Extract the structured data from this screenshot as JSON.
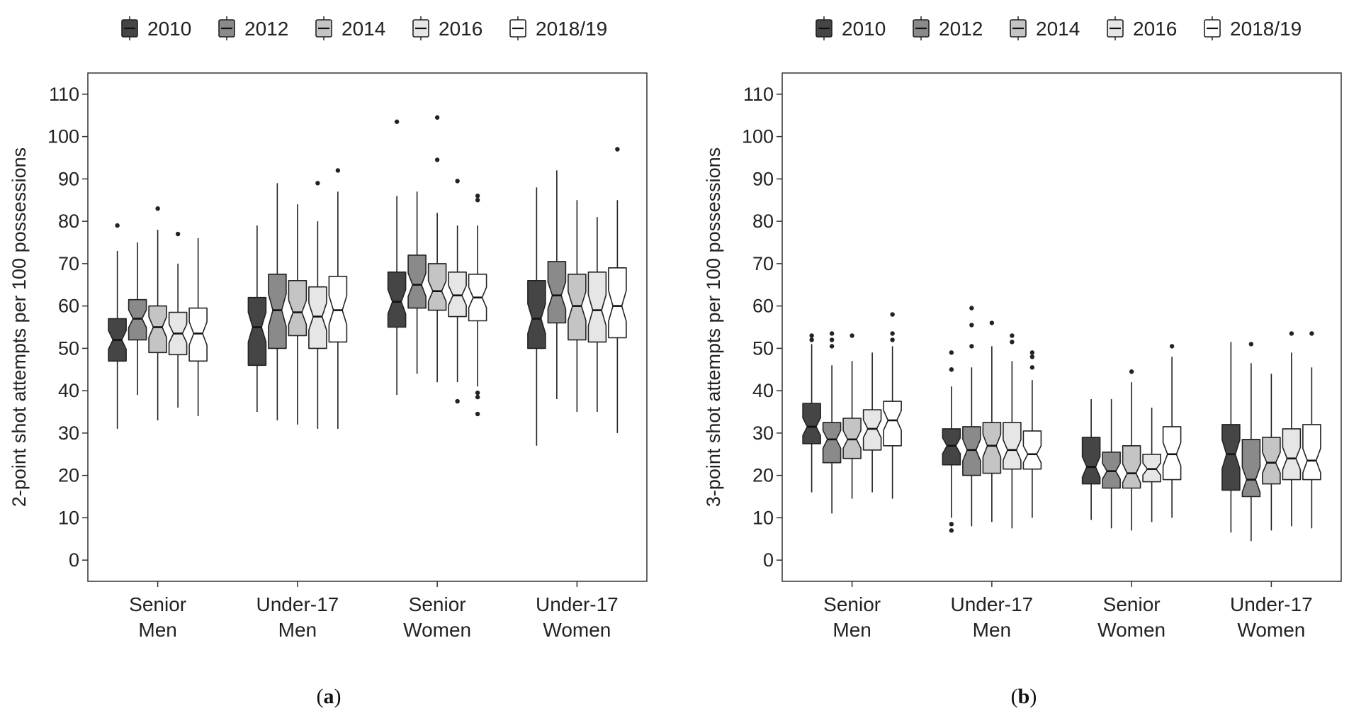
{
  "figure": {
    "panel_a_label_open": "(",
    "panel_a_label_letter": "a",
    "panel_a_label_close": ")",
    "panel_b_label_open": "(",
    "panel_b_label_letter": "b",
    "panel_b_label_close": ")"
  },
  "colors": {
    "2010": "#454545",
    "2012": "#8a8a8a",
    "2014": "#c4c4c4",
    "2016": "#e6e6e6",
    "2018/19": "#ffffff",
    "median_dark": "#111111",
    "median_light": "#ffffff",
    "outline": "#222222"
  },
  "chart_data": [
    {
      "type": "boxplot",
      "panel": "a",
      "ylabel": "2-point shot attempts per 100 possessions",
      "ylim": [
        -5,
        115
      ],
      "yticks": [
        0,
        10,
        20,
        30,
        40,
        50,
        60,
        70,
        80,
        90,
        100,
        110
      ],
      "categories": [
        "Senior\nMen",
        "Under-17\nMen",
        "Senior\nWomen",
        "Under-17\nWomen"
      ],
      "legend": [
        "2010",
        "2012",
        "2014",
        "2016",
        "2018/19"
      ],
      "series": [
        {
          "name": "2010",
          "boxes": [
            {
              "min": 31,
              "q1": 47,
              "median": 52,
              "q3": 57,
              "max": 73,
              "outliers": [
                79
              ]
            },
            {
              "min": 35,
              "q1": 46,
              "median": 55,
              "q3": 62,
              "max": 79,
              "outliers": []
            },
            {
              "min": 39,
              "q1": 55,
              "median": 61,
              "q3": 68,
              "max": 86,
              "outliers": [
                103.5
              ]
            },
            {
              "min": 27,
              "q1": 50,
              "median": 57,
              "q3": 66,
              "max": 88,
              "outliers": []
            }
          ]
        },
        {
          "name": "2012",
          "boxes": [
            {
              "min": 39,
              "q1": 52,
              "median": 57,
              "q3": 61.5,
              "max": 75,
              "outliers": []
            },
            {
              "min": 33,
              "q1": 50,
              "median": 59,
              "q3": 67.5,
              "max": 89,
              "outliers": []
            },
            {
              "min": 44,
              "q1": 59.5,
              "median": 65,
              "q3": 72,
              "max": 87,
              "outliers": []
            },
            {
              "min": 38,
              "q1": 56,
              "median": 62.5,
              "q3": 70.5,
              "max": 92,
              "outliers": []
            }
          ]
        },
        {
          "name": "2014",
          "boxes": [
            {
              "min": 33,
              "q1": 49,
              "median": 55,
              "q3": 60,
              "max": 78,
              "outliers": [
                83
              ]
            },
            {
              "min": 32,
              "q1": 53,
              "median": 58.5,
              "q3": 66,
              "max": 84,
              "outliers": []
            },
            {
              "min": 42,
              "q1": 59,
              "median": 63.5,
              "q3": 70,
              "max": 82,
              "outliers": [
                94.5,
                104.5
              ]
            },
            {
              "min": 35,
              "q1": 52,
              "median": 60,
              "q3": 67.5,
              "max": 85,
              "outliers": []
            }
          ]
        },
        {
          "name": "2016",
          "boxes": [
            {
              "min": 36,
              "q1": 48.5,
              "median": 53.5,
              "q3": 58.5,
              "max": 70,
              "outliers": [
                77
              ]
            },
            {
              "min": 31,
              "q1": 50,
              "median": 57.5,
              "q3": 64.5,
              "max": 80,
              "outliers": [
                89
              ]
            },
            {
              "min": 42,
              "q1": 57.5,
              "median": 62.5,
              "q3": 68,
              "max": 79,
              "outliers": [
                89.5,
                37.5
              ]
            },
            {
              "min": 35,
              "q1": 51.5,
              "median": 59,
              "q3": 68,
              "max": 81,
              "outliers": []
            }
          ]
        },
        {
          "name": "2018/19",
          "boxes": [
            {
              "min": 34,
              "q1": 47,
              "median": 53.5,
              "q3": 59.5,
              "max": 76,
              "outliers": []
            },
            {
              "min": 31,
              "q1": 51.5,
              "median": 59,
              "q3": 67,
              "max": 87,
              "outliers": [
                92
              ]
            },
            {
              "min": 41,
              "q1": 56.5,
              "median": 62,
              "q3": 67.5,
              "max": 79,
              "outliers": [
                86,
                85,
                39.5,
                38.5,
                34.5
              ]
            },
            {
              "min": 30,
              "q1": 52.5,
              "median": 60,
              "q3": 69,
              "max": 85,
              "outliers": [
                97
              ]
            }
          ]
        }
      ]
    },
    {
      "type": "boxplot",
      "panel": "b",
      "ylabel": "3-point shot attempts per 100 possessions",
      "ylim": [
        -5,
        115
      ],
      "yticks": [
        0,
        10,
        20,
        30,
        40,
        50,
        60,
        70,
        80,
        90,
        100,
        110
      ],
      "categories": [
        "Senior\nMen",
        "Under-17\nMen",
        "Senior\nWomen",
        "Under-17\nWomen"
      ],
      "legend": [
        "2010",
        "2012",
        "2014",
        "2016",
        "2018/19"
      ],
      "series": [
        {
          "name": "2010",
          "boxes": [
            {
              "min": 16,
              "q1": 27.5,
              "median": 31.5,
              "q3": 37,
              "max": 51,
              "outliers": [
                53,
                52
              ]
            },
            {
              "min": 10,
              "q1": 22.5,
              "median": 27,
              "q3": 31,
              "max": 41,
              "outliers": [
                49,
                45,
                8.5,
                7
              ]
            },
            {
              "min": 9.5,
              "q1": 18,
              "median": 22,
              "q3": 29,
              "max": 38,
              "outliers": []
            },
            {
              "min": 6.5,
              "q1": 16.5,
              "median": 25,
              "q3": 32,
              "max": 51.5,
              "outliers": []
            }
          ]
        },
        {
          "name": "2012",
          "boxes": [
            {
              "min": 11,
              "q1": 23,
              "median": 28.5,
              "q3": 32.5,
              "max": 46,
              "outliers": [
                53.5,
                52,
                50.5
              ]
            },
            {
              "min": 8,
              "q1": 20,
              "median": 26,
              "q3": 31.5,
              "max": 45.5,
              "outliers": [
                59.5,
                55.5,
                50.5
              ]
            },
            {
              "min": 7.5,
              "q1": 17,
              "median": 21,
              "q3": 25.5,
              "max": 38,
              "outliers": []
            },
            {
              "min": 4.5,
              "q1": 15,
              "median": 19,
              "q3": 28.5,
              "max": 46.5,
              "outliers": [
                51
              ]
            }
          ]
        },
        {
          "name": "2014",
          "boxes": [
            {
              "min": 14.5,
              "q1": 24,
              "median": 28.5,
              "q3": 33.5,
              "max": 47,
              "outliers": [
                53
              ]
            },
            {
              "min": 9,
              "q1": 20.5,
              "median": 27,
              "q3": 32.5,
              "max": 50.5,
              "outliers": [
                56
              ]
            },
            {
              "min": 7,
              "q1": 17,
              "median": 20.5,
              "q3": 27,
              "max": 42,
              "outliers": [
                44.5
              ]
            },
            {
              "min": 7,
              "q1": 18,
              "median": 23,
              "q3": 29,
              "max": 44,
              "outliers": []
            }
          ]
        },
        {
          "name": "2016",
          "boxes": [
            {
              "min": 16,
              "q1": 26,
              "median": 31,
              "q3": 35.5,
              "max": 49,
              "outliers": []
            },
            {
              "min": 7.5,
              "q1": 21.5,
              "median": 26,
              "q3": 32.5,
              "max": 47,
              "outliers": [
                53,
                51.5
              ]
            },
            {
              "min": 9,
              "q1": 18.5,
              "median": 21.5,
              "q3": 25,
              "max": 36,
              "outliers": []
            },
            {
              "min": 8,
              "q1": 19,
              "median": 24,
              "q3": 31,
              "max": 49,
              "outliers": [
                53.5
              ]
            }
          ]
        },
        {
          "name": "2018/19",
          "boxes": [
            {
              "min": 14.5,
              "q1": 27,
              "median": 33,
              "q3": 37.5,
              "max": 50.5,
              "outliers": [
                58,
                53.5,
                52
              ]
            },
            {
              "min": 10,
              "q1": 21.5,
              "median": 25,
              "q3": 30.5,
              "max": 42.5,
              "outliers": [
                49,
                48,
                45.5
              ]
            },
            {
              "min": 10,
              "q1": 19,
              "median": 25,
              "q3": 31.5,
              "max": 48,
              "outliers": [
                50.5
              ]
            },
            {
              "min": 7.5,
              "q1": 19,
              "median": 23.5,
              "q3": 32,
              "max": 45.5,
              "outliers": [
                53.5
              ]
            }
          ]
        }
      ]
    }
  ]
}
